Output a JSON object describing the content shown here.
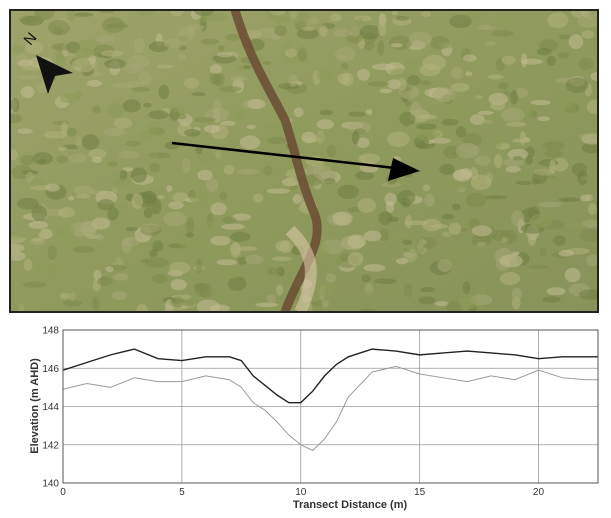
{
  "chart_data": {
    "type": "line",
    "annotation": "N",
    "xlabel": "Transect Distance (m)",
    "ylabel": "Elevation (m AHD)",
    "x": [
      0,
      1,
      2,
      3,
      4,
      5,
      6,
      7,
      7.5,
      8,
      8.5,
      9,
      9.5,
      10,
      10.5,
      11,
      11.5,
      12,
      13,
      14,
      15,
      16,
      17,
      18,
      19,
      20,
      21,
      22,
      22.5
    ],
    "series": [
      {
        "color": "#222222",
        "values": [
          145.9,
          146.3,
          146.7,
          147.0,
          146.5,
          146.4,
          146.6,
          146.6,
          146.4,
          145.6,
          145.1,
          144.6,
          144.2,
          144.2,
          144.8,
          145.6,
          146.2,
          146.6,
          147.0,
          146.9,
          146.7,
          146.8,
          146.9,
          146.8,
          146.7,
          146.5,
          146.6,
          146.6,
          146.6
        ]
      },
      {
        "color": "#9a9a9a",
        "values": [
          144.9,
          145.2,
          145.0,
          145.5,
          145.3,
          145.3,
          145.6,
          145.4,
          145.0,
          144.2,
          143.8,
          143.2,
          142.5,
          142.0,
          141.7,
          142.3,
          143.2,
          144.5,
          145.8,
          146.1,
          145.7,
          145.5,
          145.3,
          145.6,
          145.4,
          145.9,
          145.5,
          145.4,
          145.4
        ]
      }
    ],
    "xlim": [
      0,
      22.5
    ],
    "xticks": [
      0,
      5,
      10,
      15,
      20
    ],
    "ylim": [
      140,
      148
    ],
    "yticks": [
      140,
      142,
      144,
      146,
      148
    ],
    "grid": true
  }
}
